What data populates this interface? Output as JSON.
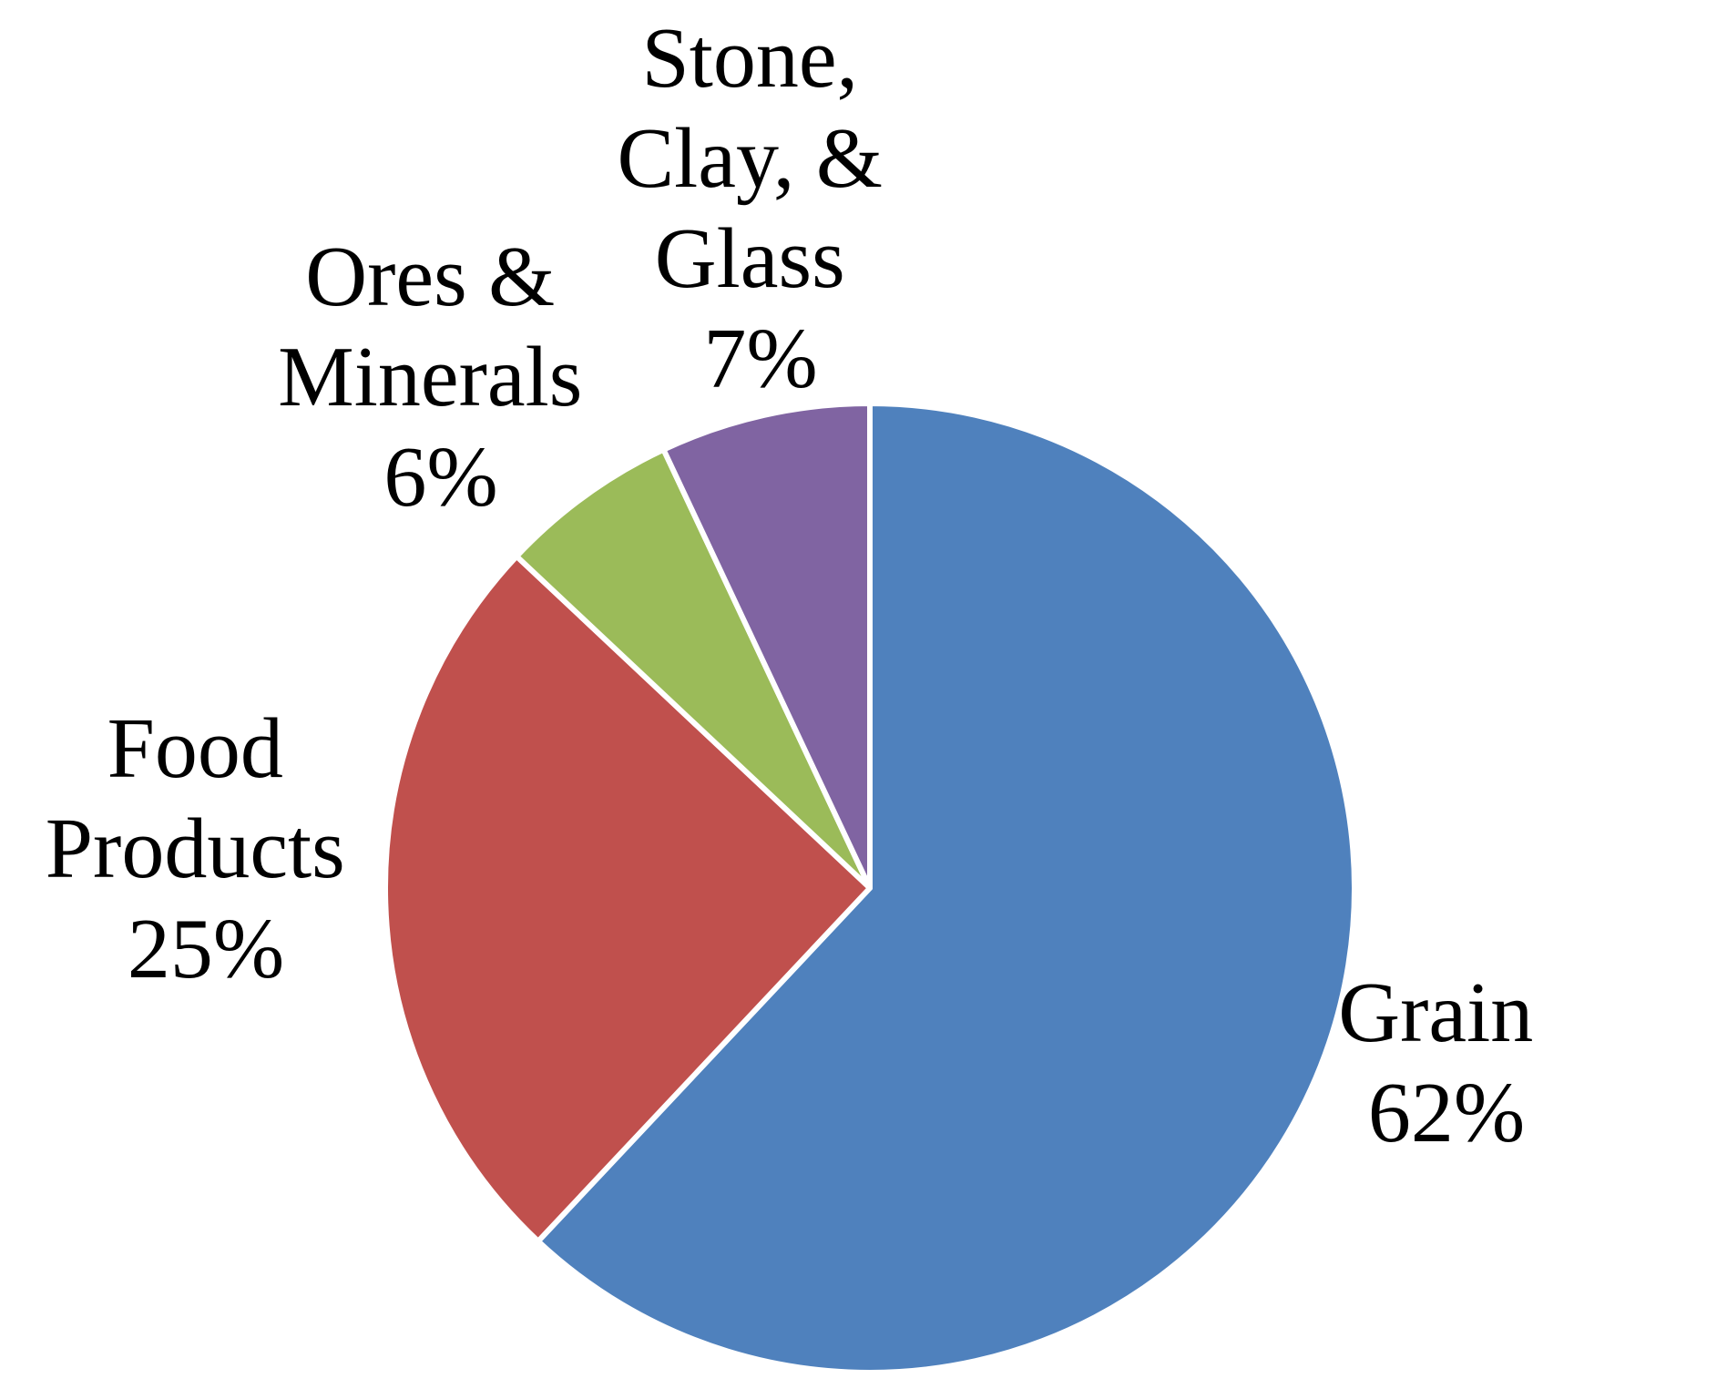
{
  "chart_data": {
    "type": "pie",
    "title": "",
    "slices": [
      {
        "name": "Grain",
        "value": 62,
        "value_label": "62%",
        "color": "#4f81bd"
      },
      {
        "name": "Food Products",
        "value": 25,
        "value_label": "25%",
        "color": "#c0504d"
      },
      {
        "name": "Ores & Minerals",
        "value": 6,
        "value_label": "6%",
        "color": "#9bbb59"
      },
      {
        "name": "Stone, Clay, & Glass",
        "value": 7,
        "value_label": "7%",
        "color": "#8064a2"
      }
    ],
    "start": "12 o'clock",
    "direction": "clockwise",
    "legend": "none"
  }
}
